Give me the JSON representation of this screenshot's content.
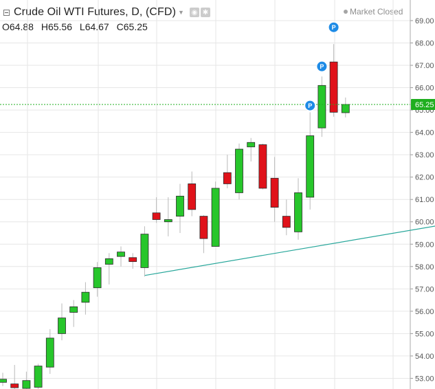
{
  "header": {
    "title": "Crude Oil WTI Futures, D, (CFD)",
    "status": "Market Closed",
    "ohlc": {
      "open_label": "O",
      "open": "64.88",
      "high_label": "H",
      "high": "65.56",
      "low_label": "L",
      "low": "64.67",
      "close_label": "C",
      "close": "65.25"
    }
  },
  "colors": {
    "up": "#27c62b",
    "down": "#e0121a",
    "grid": "#e6e6e6",
    "axis_text": "#555555",
    "price_line": "#1fae1f",
    "trendline": "#26a69a",
    "marker": "#1e8be6"
  },
  "chart_data": {
    "type": "candlestick",
    "ylim": [
      52.6,
      69.6
    ],
    "y_ticks": [
      53,
      54,
      55,
      56,
      57,
      58,
      59,
      60,
      61,
      62,
      63,
      64,
      65,
      66,
      67,
      68,
      69
    ],
    "y_tick_labels": [
      "53.00",
      "54.00",
      "55.00",
      "56.00",
      "57.00",
      "58.00",
      "59.00",
      "60.00",
      "61.00",
      "62.00",
      "63.00",
      "64.00",
      "65.00",
      "66.00",
      "67.00",
      "68.00",
      "69.00"
    ],
    "last_price": 65.25,
    "last_price_label": "65.25",
    "candles": [
      {
        "o": 52.82,
        "h": 53.25,
        "l": 52.65,
        "c": 52.96
      },
      {
        "o": 52.75,
        "h": 53.6,
        "l": 52.35,
        "c": 52.58
      },
      {
        "o": 52.55,
        "h": 53.3,
        "l": 52.3,
        "c": 52.9
      },
      {
        "o": 52.6,
        "h": 53.65,
        "l": 52.4,
        "c": 53.55
      },
      {
        "o": 53.5,
        "h": 55.2,
        "l": 53.2,
        "c": 54.8
      },
      {
        "o": 55.0,
        "h": 56.35,
        "l": 54.7,
        "c": 55.7
      },
      {
        "o": 55.95,
        "h": 56.5,
        "l": 55.3,
        "c": 56.2
      },
      {
        "o": 56.4,
        "h": 57.3,
        "l": 55.85,
        "c": 56.85
      },
      {
        "o": 57.05,
        "h": 58.2,
        "l": 56.65,
        "c": 57.95
      },
      {
        "o": 58.1,
        "h": 58.6,
        "l": 57.2,
        "c": 58.35
      },
      {
        "o": 58.45,
        "h": 58.9,
        "l": 58.0,
        "c": 58.65
      },
      {
        "o": 58.4,
        "h": 58.6,
        "l": 57.9,
        "c": 58.22
      },
      {
        "o": 57.95,
        "h": 59.8,
        "l": 57.55,
        "c": 59.45
      },
      {
        "o": 60.4,
        "h": 61.1,
        "l": 59.95,
        "c": 60.1
      },
      {
        "o": 60.0,
        "h": 61.1,
        "l": 59.35,
        "c": 60.1
      },
      {
        "o": 60.25,
        "h": 61.7,
        "l": 59.5,
        "c": 61.15
      },
      {
        "o": 61.7,
        "h": 62.25,
        "l": 60.25,
        "c": 60.55
      },
      {
        "o": 60.25,
        "h": 60.3,
        "l": 58.6,
        "c": 59.25
      },
      {
        "o": 58.9,
        "h": 61.8,
        "l": 58.9,
        "c": 61.5
      },
      {
        "o": 62.2,
        "h": 63.0,
        "l": 61.5,
        "c": 61.7
      },
      {
        "o": 61.3,
        "h": 63.5,
        "l": 61.0,
        "c": 63.25
      },
      {
        "o": 63.35,
        "h": 63.75,
        "l": 62.7,
        "c": 63.55
      },
      {
        "o": 63.45,
        "h": 63.5,
        "l": 61.45,
        "c": 61.5
      },
      {
        "o": 61.95,
        "h": 62.9,
        "l": 60.0,
        "c": 60.65
      },
      {
        "o": 60.25,
        "h": 61.0,
        "l": 59.4,
        "c": 59.75
      },
      {
        "o": 59.55,
        "h": 61.95,
        "l": 59.2,
        "c": 61.3
      },
      {
        "o": 61.1,
        "h": 64.9,
        "l": 60.55,
        "c": 63.85
      },
      {
        "o": 64.2,
        "h": 66.5,
        "l": 63.8,
        "c": 66.1
      },
      {
        "o": 67.15,
        "h": 67.95,
        "l": 64.7,
        "c": 64.9
      },
      {
        "o": 64.88,
        "h": 65.56,
        "l": 64.67,
        "c": 65.25
      }
    ],
    "markers": [
      {
        "index": 26,
        "price": 65.2,
        "label": "P"
      },
      {
        "index": 27,
        "price": 66.95,
        "label": "P"
      },
      {
        "index": 28,
        "price": 68.7,
        "label": "P"
      }
    ],
    "trendline": {
      "from": {
        "index": 12,
        "price": 57.6
      },
      "to": {
        "index": 41.5,
        "price": 60.25
      }
    }
  }
}
